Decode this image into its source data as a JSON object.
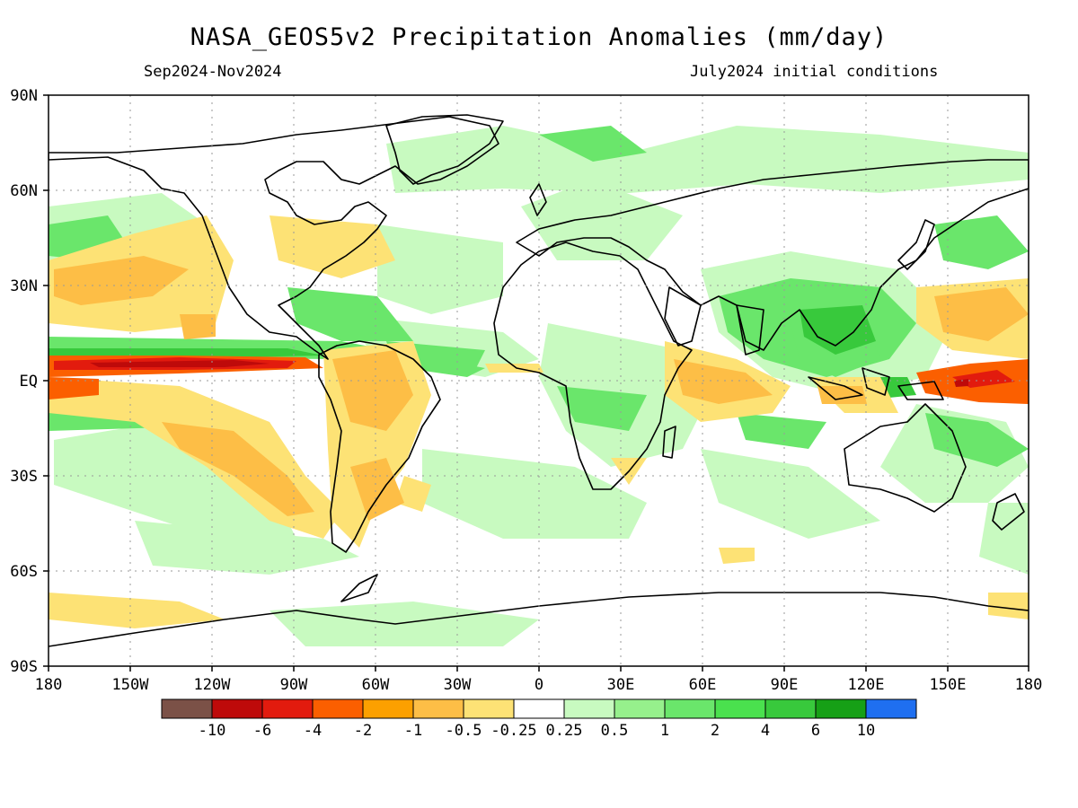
{
  "header": {
    "title": "NASA_GEOS5v2 Precipitation Anomalies (mm/day)",
    "period": "Sep2024-Nov2024",
    "init": "July2024 initial conditions"
  },
  "axes": {
    "lat_labels": [
      "90N",
      "60N",
      "30N",
      "EQ",
      "30S",
      "60S",
      "90S"
    ],
    "lon_labels": [
      "180",
      "150W",
      "120W",
      "90W",
      "60W",
      "30W",
      "0",
      "30E",
      "60E",
      "90E",
      "120E",
      "150E",
      "180"
    ]
  },
  "colorbar": {
    "labels": [
      "-10",
      "-6",
      "-4",
      "-2",
      "-1",
      "-0.5",
      "-0.25",
      "0.25",
      "0.5",
      "1",
      "2",
      "4",
      "6",
      "10"
    ],
    "colors": [
      "#7b5147",
      "#be0a0a",
      "#e21b0e",
      "#fb5f00",
      "#fca000",
      "#fdbe46",
      "#fde275",
      "#ffffff",
      "#c8fac0",
      "#96f08c",
      "#6ae66b",
      "#4ae14e",
      "#38c93c",
      "#16a016",
      "#1f6ff0"
    ]
  },
  "palette": {
    "orange_light": "#fde275",
    "orange": "#fdbe46",
    "orange_dark": "#fca000",
    "red_orange": "#fb5f00",
    "red": "#e21b0e",
    "dark_red": "#be0a0a",
    "green_pale": "#c8fac0",
    "green_light": "#96f08c",
    "green": "#6ae66b",
    "green_bright": "#4ae14e",
    "green_dark": "#38c93c",
    "blue": "#1f6ff0"
  }
}
